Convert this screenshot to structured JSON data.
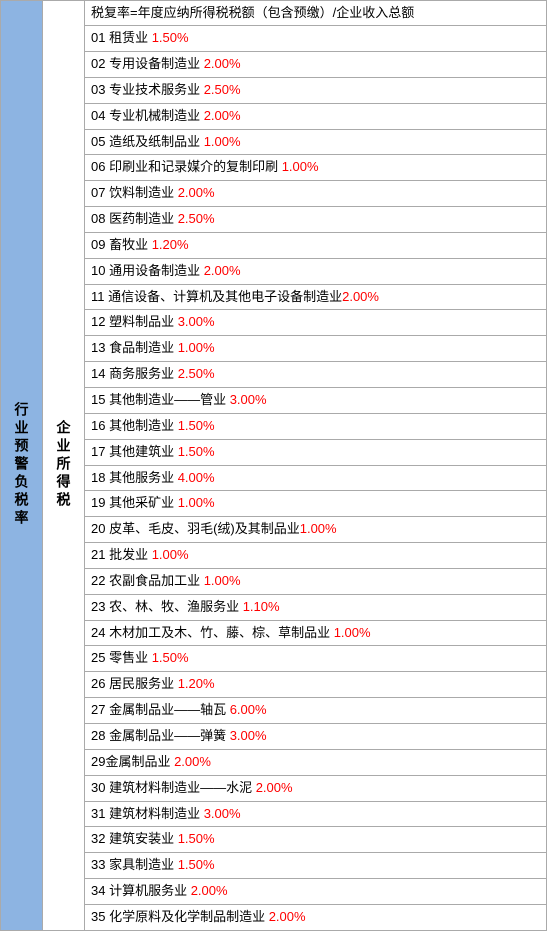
{
  "left_header": "行业预警负税率",
  "mid_header": "企业所得税",
  "formula": "税复率=年度应纳所得税税额（包含预缴）/企业收入总额",
  "text_color": "#000000",
  "rate_color": "#ff0000",
  "left_bg": "#8db4e2",
  "border_color": "#aaaaaa",
  "rows": [
    {
      "num": "01",
      "label": "租赁业",
      "rate": "1.50%",
      "space": true
    },
    {
      "num": "02",
      "label": "专用设备制造业",
      "rate": "2.00%",
      "space": true
    },
    {
      "num": "03",
      "label": "专业技术服务业",
      "rate": "2.50%",
      "space": true
    },
    {
      "num": "04",
      "label": "专业机械制造业",
      "rate": "2.00%",
      "space": true
    },
    {
      "num": "05",
      "label": "造纸及纸制品业",
      "rate": "1.00%",
      "space": true
    },
    {
      "num": "06",
      "label": "印刷业和记录媒介的复制印刷",
      "rate": "1.00%",
      "space": true
    },
    {
      "num": "07",
      "label": "饮料制造业",
      "rate": "2.00%",
      "space": true
    },
    {
      "num": "08",
      "label": "医药制造业",
      "rate": "2.50%",
      "space": true
    },
    {
      "num": "09",
      "label": "畜牧业",
      "rate": "1.20%",
      "space": true
    },
    {
      "num": "10",
      "label": "通用设备制造业",
      "rate": "2.00%",
      "space": true
    },
    {
      "num": "11",
      "label": "通信设备、计算机及其他电子设备制造业",
      "rate": "2.00%",
      "space": false
    },
    {
      "num": "12",
      "label": "塑料制品业",
      "rate": "3.00%",
      "space": true
    },
    {
      "num": "13",
      "label": "食品制造业",
      "rate": "1.00%",
      "space": true
    },
    {
      "num": "14",
      "label": "商务服务业",
      "rate": "2.50%",
      "space": true
    },
    {
      "num": "15",
      "label": "其他制造业——管业",
      "rate": "3.00%",
      "space": true
    },
    {
      "num": "16",
      "label": "其他制造业",
      "rate": "1.50%",
      "space": true
    },
    {
      "num": "17",
      "label": "其他建筑业",
      "rate": "1.50%",
      "space": true
    },
    {
      "num": "18",
      "label": "其他服务业",
      "rate": "4.00%",
      "space": true
    },
    {
      "num": "19",
      "label": "其他采矿业",
      "rate": "1.00%",
      "space": true
    },
    {
      "num": "20",
      "label": "皮革、毛皮、羽毛(绒)及其制品业",
      "rate": "1.00%",
      "space": false
    },
    {
      "num": "21",
      "label": "批发业",
      "rate": "1.00%",
      "space": true
    },
    {
      "num": "22",
      "label": "农副食品加工业",
      "rate": "1.00%",
      "space": true
    },
    {
      "num": "23",
      "label": "农、林、牧、渔服务业",
      "rate": "1.10%",
      "space": true
    },
    {
      "num": "24",
      "label": "木材加工及木、竹、藤、棕、草制品业",
      "rate": "1.00%",
      "space": true
    },
    {
      "num": "25",
      "label": "零售业",
      "rate": "1.50%",
      "space": true
    },
    {
      "num": "26",
      "label": "居民服务业",
      "rate": "1.20%",
      "space": true
    },
    {
      "num": "27",
      "label": "金属制品业——轴瓦",
      "rate": "6.00%",
      "space": true
    },
    {
      "num": "28",
      "label": "金属制品业——弹簧",
      "rate": "3.00%",
      "space": true
    },
    {
      "num": "29",
      "label": "金属制品业",
      "rate": "2.00%",
      "space": true,
      "nospace_after_num": true
    },
    {
      "num": "30",
      "label": "建筑材料制造业——水泥",
      "rate": "2.00%",
      "space": true
    },
    {
      "num": "31",
      "label": "建筑材料制造业",
      "rate": "3.00%",
      "space": true
    },
    {
      "num": "32",
      "label": "建筑安装业",
      "rate": "1.50%",
      "space": true
    },
    {
      "num": "33",
      "label": "家具制造业",
      "rate": "1.50%",
      "space": true
    },
    {
      "num": "34",
      "label": "计算机服务业",
      "rate": "2.00%",
      "space": true
    },
    {
      "num": "35",
      "label": "化学原料及化学制品制造业",
      "rate": "2.00%",
      "space": true
    }
  ]
}
